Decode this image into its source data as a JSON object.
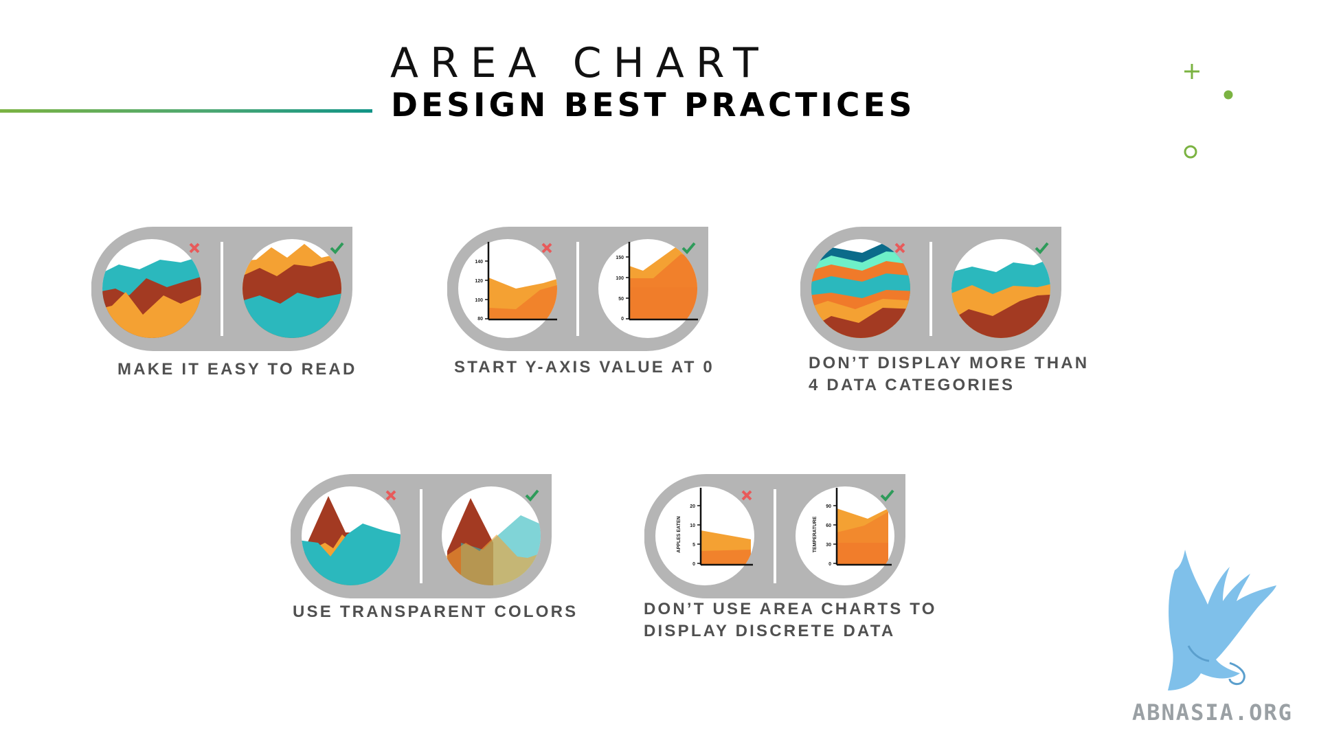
{
  "title": {
    "line1": "AREA CHART",
    "line2": "DESIGN BEST PRACTICES"
  },
  "colors": {
    "accent_green": "#7bb342",
    "teal": "#119487",
    "card_gray": "#b5b5b5",
    "wrong": "#e85a5a",
    "right": "#2e9b5a"
  },
  "icons": {
    "wrong": "×",
    "right": "✔"
  },
  "cards": [
    {
      "caption": "MAKE IT EASY TO READ"
    },
    {
      "caption": "START Y-AXIS VALUE AT 0",
      "bad_ticks": [
        "140",
        "120",
        "100",
        "80"
      ],
      "good_ticks": [
        "150",
        "100",
        "50",
        "0"
      ]
    },
    {
      "caption_line1": "DON’T DISPLAY MORE THAN",
      "caption_line2": "4 DATA CATEGORIES"
    },
    {
      "caption": "USE TRANSPARENT COLORS"
    },
    {
      "caption_line1": "DON’T USE AREA CHARTS TO",
      "caption_line2": "DISPLAY DISCRETE DATA",
      "bad_axis_label": "APPLES EATEN",
      "bad_ticks": [
        "20",
        "10",
        "5",
        "0"
      ],
      "good_axis_label": "TEMPERATURE",
      "good_ticks": [
        "90",
        "60",
        "30",
        "0"
      ]
    }
  ],
  "logo": {
    "text": "ABNASIA.ORG"
  }
}
